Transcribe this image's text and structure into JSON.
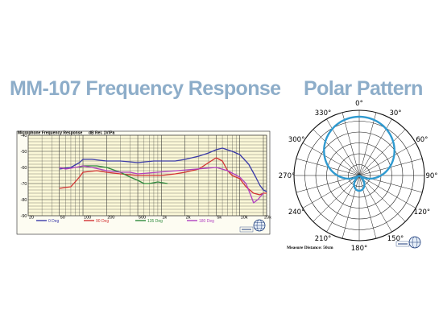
{
  "titles": {
    "frequency": "MM-107 Frequency Response",
    "polar": "Polar Pattern"
  },
  "colors": {
    "title_text": "#8dadc9",
    "polar_trace": "#2f9ad0"
  },
  "chart_data": [
    {
      "type": "line",
      "title": "Microphone Frequency Response",
      "unit_label": "dB Rel. 1V/Pa",
      "x_scale": "log",
      "xlim": [
        20,
        22000
      ],
      "ylim": [
        -90,
        -40
      ],
      "grid": true,
      "x_ticks": [
        {
          "value": 20,
          "label": "20"
        },
        {
          "value": 50,
          "label": "50"
        },
        {
          "value": 100,
          "label": "100"
        },
        {
          "value": 200,
          "label": "200"
        },
        {
          "value": 500,
          "label": "500"
        },
        {
          "value": 1000,
          "label": "1k"
        },
        {
          "value": 2000,
          "label": "2k"
        },
        {
          "value": 5000,
          "label": "5k"
        },
        {
          "value": 10000,
          "label": "10k"
        },
        {
          "value": 20000,
          "label": "20k"
        }
      ],
      "y_ticks": [
        {
          "value": -40,
          "label": "-40"
        },
        {
          "value": -50,
          "label": "-50"
        },
        {
          "value": -60,
          "label": "-60"
        },
        {
          "value": -70,
          "label": "-70"
        },
        {
          "value": -80,
          "label": "-80"
        },
        {
          "value": -90,
          "label": "-90"
        }
      ],
      "series": [
        {
          "name": "0 Deg",
          "color": "#3a3aa8",
          "points": [
            [
              50,
              -61
            ],
            [
              70,
              -60
            ],
            [
              90,
              -57
            ],
            [
              100,
              -55
            ],
            [
              130,
              -55
            ],
            [
              200,
              -56
            ],
            [
              300,
              -56
            ],
            [
              500,
              -57
            ],
            [
              800,
              -56
            ],
            [
              1000,
              -56
            ],
            [
              1500,
              -56
            ],
            [
              2000,
              -55
            ],
            [
              3000,
              -53
            ],
            [
              4000,
              -51
            ],
            [
              5000,
              -49
            ],
            [
              6000,
              -48
            ],
            [
              8000,
              -50
            ],
            [
              10000,
              -52
            ],
            [
              13000,
              -58
            ],
            [
              16000,
              -66
            ],
            [
              18000,
              -71
            ],
            [
              20000,
              -74
            ],
            [
              22000,
              -75
            ]
          ]
        },
        {
          "name": "90 Deg",
          "color": "#d23232",
          "points": [
            [
              50,
              -73
            ],
            [
              70,
              -72
            ],
            [
              90,
              -66
            ],
            [
              100,
              -63
            ],
            [
              150,
              -62
            ],
            [
              200,
              -63
            ],
            [
              300,
              -64
            ],
            [
              500,
              -65
            ],
            [
              1000,
              -65
            ],
            [
              1500,
              -64
            ],
            [
              2000,
              -63
            ],
            [
              3000,
              -61
            ],
            [
              4000,
              -57
            ],
            [
              5000,
              -54
            ],
            [
              6000,
              -56
            ],
            [
              7000,
              -62
            ],
            [
              8000,
              -65
            ],
            [
              10000,
              -67
            ],
            [
              12000,
              -72
            ],
            [
              15000,
              -76
            ],
            [
              18000,
              -77
            ],
            [
              20000,
              -76
            ],
            [
              22000,
              -76
            ]
          ]
        },
        {
          "name": "135 Deg",
          "color": "#2e8a3c",
          "points": [
            [
              90,
              -60
            ],
            [
              100,
              -59
            ],
            [
              150,
              -59
            ],
            [
              200,
              -60
            ],
            [
              300,
              -63
            ],
            [
              400,
              -66
            ],
            [
              500,
              -68
            ],
            [
              600,
              -70
            ],
            [
              700,
              -70
            ],
            [
              900,
              -69
            ],
            [
              1200,
              -70
            ]
          ]
        },
        {
          "name": "180 Deg",
          "color": "#b040c0",
          "points": [
            [
              50,
              -60
            ],
            [
              60,
              -61
            ],
            [
              80,
              -60
            ],
            [
              100,
              -59
            ],
            [
              130,
              -60
            ],
            [
              200,
              -62
            ],
            [
              300,
              -63
            ],
            [
              400,
              -63
            ],
            [
              500,
              -64
            ],
            [
              5000,
              -60
            ],
            [
              7000,
              -62
            ],
            [
              10000,
              -66
            ],
            [
              12000,
              -70
            ],
            [
              14000,
              -78
            ],
            [
              15000,
              -82
            ],
            [
              17000,
              -80
            ],
            [
              20000,
              -76
            ]
          ]
        }
      ],
      "legend": {
        "placement": "bottom"
      }
    },
    {
      "type": "polar",
      "title": "Polar Pattern",
      "angle_labels": [
        "0°",
        "30°",
        "60°",
        "90°",
        "120°",
        "150°",
        "180°",
        "210°",
        "240°",
        "270°",
        "300°",
        "330°"
      ],
      "radial_levels": 6,
      "pattern": "supercardioid",
      "pattern_params": {
        "a": 0.37,
        "b": 0.63
      },
      "footnote": "Measure Distance: 50cm"
    }
  ]
}
